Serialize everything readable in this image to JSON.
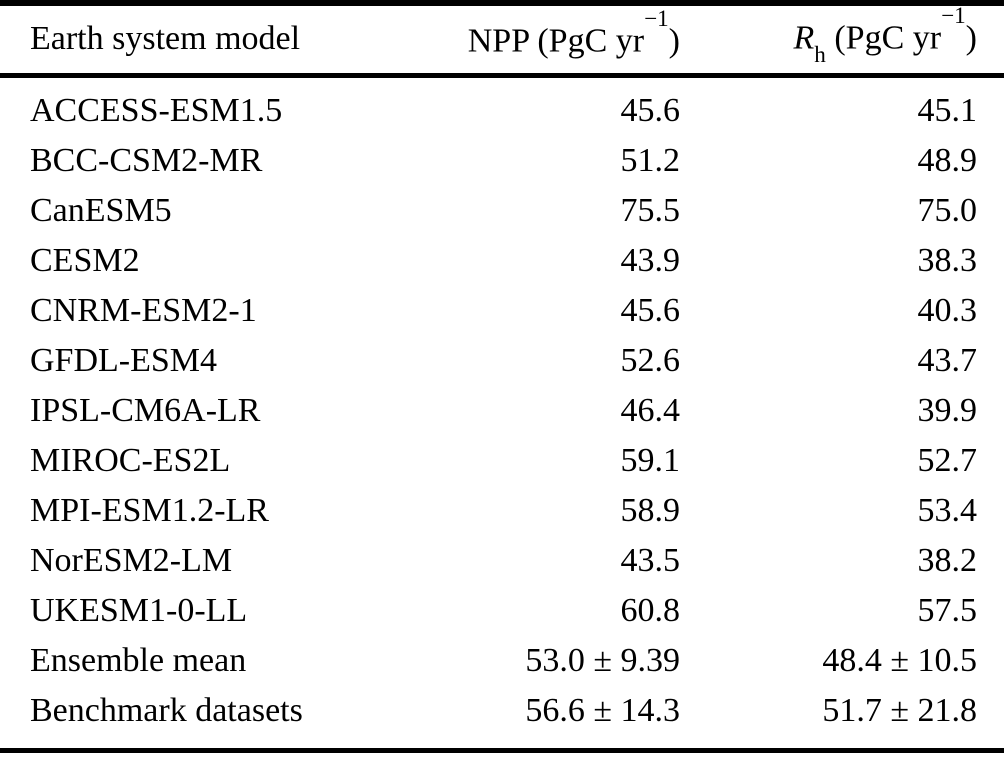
{
  "table": {
    "header": {
      "model": "Earth system model",
      "npp": {
        "text": "NPP (PgC yr",
        "sup": "−1",
        "close": ")"
      },
      "rh": {
        "symbol": "R",
        "sub": "h",
        "text": " (PgC yr",
        "sup": "−1",
        "close": ")"
      }
    },
    "rows": [
      {
        "model": "ACCESS-ESM1.5",
        "npp": "45.6",
        "rh": "45.1"
      },
      {
        "model": "BCC-CSM2-MR",
        "npp": "51.2",
        "rh": "48.9"
      },
      {
        "model": "CanESM5",
        "npp": "75.5",
        "rh": "75.0"
      },
      {
        "model": "CESM2",
        "npp": "43.9",
        "rh": "38.3"
      },
      {
        "model": "CNRM-ESM2-1",
        "npp": "45.6",
        "rh": "40.3"
      },
      {
        "model": "GFDL-ESM4",
        "npp": "52.6",
        "rh": "43.7"
      },
      {
        "model": "IPSL-CM6A-LR",
        "npp": "46.4",
        "rh": "39.9"
      },
      {
        "model": "MIROC-ES2L",
        "npp": "59.1",
        "rh": "52.7"
      },
      {
        "model": "MPI-ESM1.2-LR",
        "npp": "58.9",
        "rh": "53.4"
      },
      {
        "model": "NorESM2-LM",
        "npp": "43.5",
        "rh": "38.2"
      },
      {
        "model": "UKESM1-0-LL",
        "npp": "60.8",
        "rh": "57.5"
      },
      {
        "model": "Ensemble mean",
        "npp": "53.0 ± 9.39",
        "rh": "48.4 ± 10.5"
      },
      {
        "model": "Benchmark datasets",
        "npp": "56.6 ± 14.3",
        "rh": "51.7 ± 21.8"
      }
    ]
  }
}
